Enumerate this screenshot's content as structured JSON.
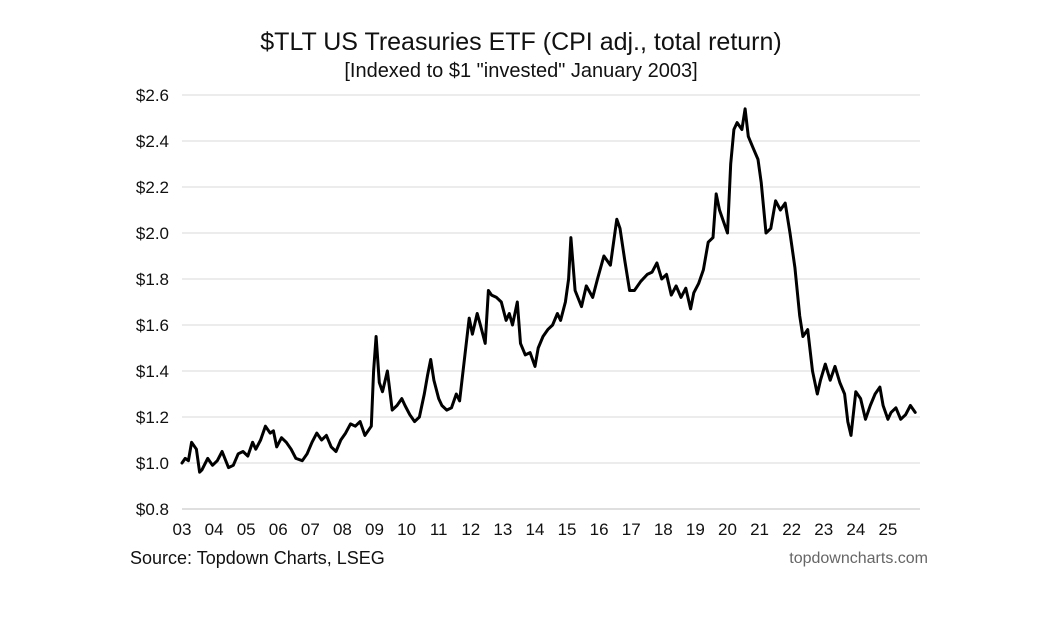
{
  "title": "$TLT US Treasuries ETF (CPI adj., total return)",
  "subtitle": "[Indexed to $1 \"invested\" January 2003]",
  "source": "Source: Topdown Charts, LSEG",
  "brand": "topdowncharts.com",
  "chart_data": {
    "type": "line",
    "title": "$TLT US Treasuries ETF (CPI adj., total return)",
    "subtitle": "[Indexed to $1 \"invested\" January 2003]",
    "xlabel": "",
    "ylabel": "",
    "ylim": [
      0.8,
      2.6
    ],
    "xlim": [
      2003.0,
      2026.0
    ],
    "y_tick_values": [
      0.8,
      1.0,
      1.2,
      1.4,
      1.6,
      1.8,
      2.0,
      2.2,
      2.4,
      2.6
    ],
    "y_tick_labels": [
      "$0.8",
      "$1.0",
      "$1.2",
      "$1.4",
      "$1.6",
      "$1.8",
      "$2.0",
      "$2.2",
      "$2.4",
      "$2.6"
    ],
    "x_tick_values": [
      2003,
      2004,
      2005,
      2006,
      2007,
      2008,
      2009,
      2010,
      2011,
      2012,
      2013,
      2014,
      2015,
      2016,
      2017,
      2018,
      2019,
      2020,
      2021,
      2022,
      2023,
      2024,
      2025
    ],
    "x_tick_labels": [
      "03",
      "04",
      "05",
      "06",
      "07",
      "08",
      "09",
      "10",
      "11",
      "12",
      "13",
      "14",
      "15",
      "16",
      "17",
      "18",
      "19",
      "20",
      "21",
      "22",
      "23",
      "24",
      "25"
    ],
    "grid": true,
    "line_color": "#000000",
    "grid_color": "#d9d9d9",
    "series": [
      {
        "x": [
          2003.0,
          2003.1,
          2003.2,
          2003.3,
          2003.45,
          2003.55,
          2003.62,
          2003.8,
          2003.95,
          2004.1,
          2004.25,
          2004.45,
          2004.6,
          2004.75,
          2004.9,
          2005.05,
          2005.2,
          2005.3,
          2005.45,
          2005.6,
          2005.75,
          2005.85,
          2005.95,
          2006.1,
          2006.25,
          2006.4,
          2006.55,
          2006.75,
          2006.9,
          2007.05,
          2007.2,
          2007.35,
          2007.5,
          2007.65,
          2007.8,
          2007.95,
          2008.1,
          2008.25,
          2008.4,
          2008.55,
          2008.7,
          2008.8,
          2008.9,
          2008.97,
          2009.05,
          2009.15,
          2009.25,
          2009.4,
          2009.55,
          2009.7,
          2009.85,
          2009.95,
          2010.1,
          2010.25,
          2010.4,
          2010.55,
          2010.65,
          2010.75,
          2010.85,
          2011.0,
          2011.1,
          2011.25,
          2011.4,
          2011.55,
          2011.65,
          2011.8,
          2011.95,
          2012.05,
          2012.2,
          2012.3,
          2012.45,
          2012.55,
          2012.65,
          2012.8,
          2012.95,
          2013.1,
          2013.2,
          2013.3,
          2013.45,
          2013.55,
          2013.7,
          2013.85,
          2014.0,
          2014.1,
          2014.25,
          2014.4,
          2014.55,
          2014.7,
          2014.8,
          2014.95,
          2015.05,
          2015.12,
          2015.25,
          2015.45,
          2015.6,
          2015.8,
          2015.95,
          2016.15,
          2016.35,
          2016.55,
          2016.65,
          2016.8,
          2016.95,
          2017.1,
          2017.3,
          2017.5,
          2017.65,
          2017.8,
          2017.95,
          2018.1,
          2018.25,
          2018.4,
          2018.55,
          2018.7,
          2018.85,
          2018.95,
          2019.1,
          2019.25,
          2019.4,
          2019.55,
          2019.65,
          2019.75,
          2019.85,
          2020.0,
          2020.1,
          2020.2,
          2020.3,
          2020.45,
          2020.55,
          2020.65,
          2020.8,
          2020.95,
          2021.05,
          2021.2,
          2021.35,
          2021.5,
          2021.65,
          2021.8,
          2021.95,
          2022.1,
          2022.25,
          2022.35,
          2022.5,
          2022.65,
          2022.8,
          2022.9,
          2023.05,
          2023.2,
          2023.35,
          2023.5,
          2023.65,
          2023.75,
          2023.85,
          2024.0,
          2024.15,
          2024.3,
          2024.45,
          2024.6,
          2024.75,
          2024.85,
          2025.0,
          2025.1,
          2025.25,
          2025.4,
          2025.55,
          2025.7,
          2025.85
        ],
        "y": [
          1.0,
          1.02,
          1.01,
          1.09,
          1.06,
          0.96,
          0.97,
          1.02,
          0.99,
          1.01,
          1.05,
          0.98,
          0.99,
          1.04,
          1.05,
          1.03,
          1.09,
          1.06,
          1.1,
          1.16,
          1.13,
          1.14,
          1.07,
          1.11,
          1.09,
          1.06,
          1.02,
          1.01,
          1.04,
          1.09,
          1.13,
          1.1,
          1.12,
          1.07,
          1.05,
          1.1,
          1.13,
          1.17,
          1.16,
          1.18,
          1.12,
          1.14,
          1.16,
          1.4,
          1.55,
          1.35,
          1.31,
          1.4,
          1.23,
          1.25,
          1.28,
          1.25,
          1.21,
          1.18,
          1.2,
          1.3,
          1.38,
          1.45,
          1.36,
          1.28,
          1.25,
          1.23,
          1.24,
          1.3,
          1.27,
          1.45,
          1.63,
          1.56,
          1.65,
          1.6,
          1.52,
          1.75,
          1.73,
          1.72,
          1.7,
          1.62,
          1.65,
          1.6,
          1.7,
          1.52,
          1.47,
          1.48,
          1.42,
          1.5,
          1.55,
          1.58,
          1.6,
          1.65,
          1.62,
          1.7,
          1.8,
          1.98,
          1.75,
          1.68,
          1.77,
          1.72,
          1.8,
          1.9,
          1.86,
          2.06,
          2.02,
          1.88,
          1.75,
          1.75,
          1.79,
          1.82,
          1.83,
          1.87,
          1.8,
          1.82,
          1.73,
          1.77,
          1.72,
          1.76,
          1.67,
          1.74,
          1.78,
          1.84,
          1.96,
          1.98,
          2.17,
          2.1,
          2.06,
          2.0,
          2.3,
          2.45,
          2.48,
          2.45,
          2.54,
          2.42,
          2.37,
          2.32,
          2.22,
          2.0,
          2.02,
          2.14,
          2.1,
          2.13,
          2.0,
          1.85,
          1.64,
          1.55,
          1.58,
          1.4,
          1.3,
          1.36,
          1.43,
          1.36,
          1.42,
          1.35,
          1.3,
          1.18,
          1.12,
          1.31,
          1.28,
          1.19,
          1.25,
          1.3,
          1.33,
          1.25,
          1.19,
          1.22,
          1.24,
          1.19,
          1.21,
          1.25,
          1.22
        ]
      }
    ]
  }
}
